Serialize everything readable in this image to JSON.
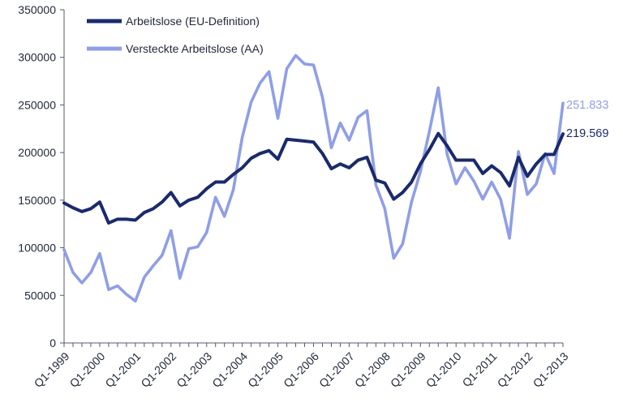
{
  "chart_data": {
    "type": "line",
    "title": "",
    "xlabel": "",
    "ylabel": "",
    "ylim": [
      0,
      350000
    ],
    "yticks": [
      "0",
      "50000",
      "100000",
      "150000",
      "200000",
      "250000",
      "300000",
      "350000"
    ],
    "xticks": [
      {
        "label": "Q1-1999",
        "x": 0
      },
      {
        "label": "Q1-2000",
        "x": 4
      },
      {
        "label": "Q1-2001",
        "x": 8
      },
      {
        "label": "Q1-2002",
        "x": 12
      },
      {
        "label": "Q1-2003",
        "x": 16
      },
      {
        "label": "Q1-2004",
        "x": 20
      },
      {
        "label": "Q1-2005",
        "x": 24
      },
      {
        "label": "Q1-2006",
        "x": 28
      },
      {
        "label": "Q1-2007",
        "x": 32
      },
      {
        "label": "Q1-2008",
        "x": 36
      },
      {
        "label": "Q1-2009",
        "x": 40
      },
      {
        "label": "Q1-2010",
        "x": 44
      },
      {
        "label": "Q1-2011",
        "x": 48
      },
      {
        "label": "Q1-2012",
        "x": 52
      },
      {
        "label": "Q1-2013",
        "x": 56
      }
    ],
    "grid": false,
    "legend": "top-left",
    "series": [
      {
        "name": "Arbeitslose (EU-Definition)",
        "color": "#1a2a6c",
        "end_label": "219.569",
        "values": [
          147000,
          142000,
          138000,
          141000,
          148000,
          126000,
          130000,
          130000,
          129000,
          137000,
          141000,
          148000,
          158000,
          144000,
          150000,
          153000,
          162000,
          169000,
          169000,
          177000,
          184000,
          194000,
          199000,
          202000,
          193000,
          214000,
          213000,
          212000,
          211000,
          199000,
          183000,
          188000,
          184000,
          192000,
          195000,
          171000,
          168000,
          151000,
          158000,
          169000,
          188000,
          203000,
          220000,
          207000,
          192000,
          192000,
          192000,
          178000,
          186000,
          179000,
          165000,
          195000,
          175000,
          188000,
          198000,
          198000,
          219569
        ]
      },
      {
        "name": "Versteckte Arbeitslose (AA)",
        "color": "#8f9ee6",
        "end_label": "251.833",
        "values": [
          98000,
          74000,
          63000,
          74000,
          94000,
          56000,
          60000,
          51000,
          44000,
          69000,
          81000,
          92000,
          118000,
          68000,
          99000,
          101000,
          116000,
          153000,
          133000,
          161000,
          216000,
          253000,
          273000,
          285000,
          236000,
          288000,
          302000,
          293000,
          292000,
          258000,
          205000,
          231000,
          213000,
          237000,
          244000,
          166000,
          141000,
          89000,
          104000,
          148000,
          180000,
          222000,
          268000,
          198000,
          167000,
          184000,
          170000,
          151000,
          169000,
          151000,
          110000,
          201000,
          156000,
          167000,
          199000,
          178000,
          251833
        ]
      }
    ]
  }
}
